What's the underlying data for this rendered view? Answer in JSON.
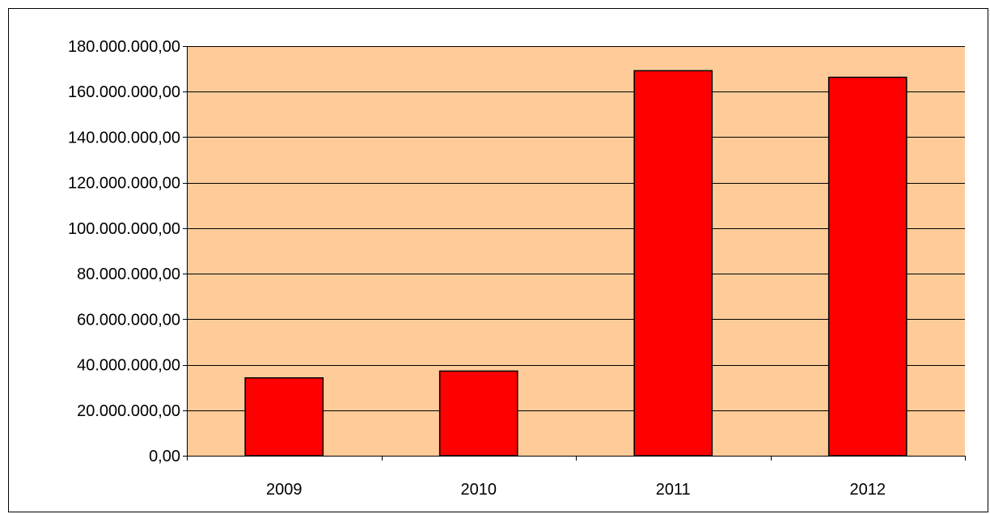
{
  "chart_data": {
    "type": "bar",
    "title": "",
    "xlabel": "",
    "ylabel": "",
    "categories": [
      "2009",
      "2010",
      "2011",
      "2012"
    ],
    "values": [
      34200000,
      37200000,
      169200000,
      166300000
    ],
    "ylim": [
      0,
      180000000
    ],
    "yticks": [
      0,
      20000000,
      40000000,
      60000000,
      80000000,
      100000000,
      120000000,
      140000000,
      160000000,
      180000000
    ],
    "ytick_labels": [
      "0,00",
      "20.000.000,00",
      "40.000.000,00",
      "60.000.000,00",
      "80.000.000,00",
      "100.000.000,00",
      "120.000.000,00",
      "140.000.000,00",
      "160.000.000,00",
      "180.000.000,00"
    ],
    "grid": true,
    "legend": "none",
    "colors": {
      "plot_background": "#FFCC99",
      "bar_fill": "#FF0000",
      "bar_stroke": "#000000",
      "gridline": "#000000"
    }
  }
}
